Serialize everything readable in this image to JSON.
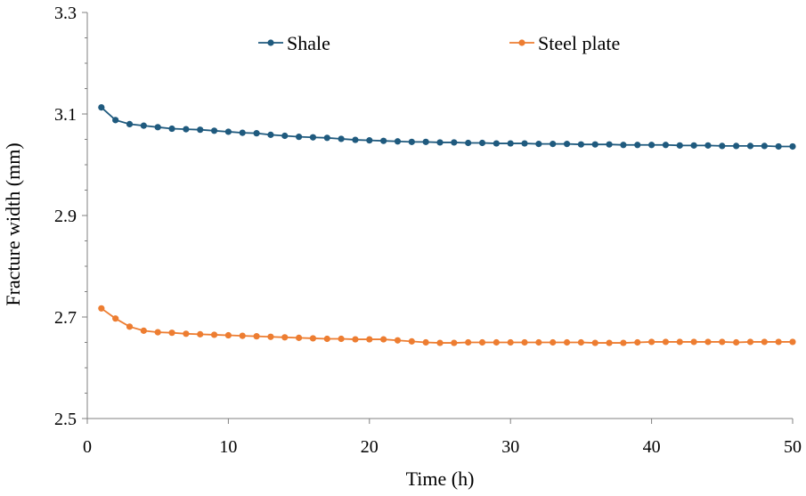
{
  "chart_data": {
    "type": "line",
    "title": "",
    "xlabel": "Time (h)",
    "ylabel": "Fracture width (mm)",
    "xlim": [
      0,
      50
    ],
    "ylim": [
      2.5,
      3.3
    ],
    "xticks": [
      0,
      10,
      20,
      30,
      40,
      50
    ],
    "yticks": [
      2.5,
      2.7,
      2.9,
      3.1,
      3.3
    ],
    "x_tick_labels": [
      "0",
      "10",
      "20",
      "30",
      "40",
      "50"
    ],
    "y_tick_labels": [
      "2.5",
      "2.7",
      "2.9",
      "3.1",
      "3.3"
    ],
    "grid": false,
    "legend_position": "top",
    "x": [
      1,
      2,
      3,
      4,
      5,
      6,
      7,
      8,
      9,
      10,
      11,
      12,
      13,
      14,
      15,
      16,
      17,
      18,
      19,
      20,
      21,
      22,
      23,
      24,
      25,
      26,
      27,
      28,
      29,
      30,
      31,
      32,
      33,
      34,
      35,
      36,
      37,
      38,
      39,
      40,
      41,
      42,
      43,
      44,
      45,
      46,
      47,
      48,
      49,
      50
    ],
    "series": [
      {
        "name": "Shale",
        "color": "#1f5a7e",
        "values": [
          3.113,
          3.088,
          3.08,
          3.077,
          3.074,
          3.071,
          3.07,
          3.069,
          3.067,
          3.065,
          3.063,
          3.062,
          3.059,
          3.057,
          3.055,
          3.054,
          3.053,
          3.051,
          3.049,
          3.048,
          3.047,
          3.046,
          3.045,
          3.045,
          3.044,
          3.044,
          3.043,
          3.043,
          3.042,
          3.042,
          3.042,
          3.041,
          3.041,
          3.041,
          3.04,
          3.04,
          3.04,
          3.039,
          3.039,
          3.039,
          3.039,
          3.038,
          3.038,
          3.038,
          3.037,
          3.037,
          3.037,
          3.037,
          3.036,
          3.036
        ]
      },
      {
        "name": "Steel plate",
        "color": "#ed7d31",
        "values": [
          2.717,
          2.697,
          2.681,
          2.673,
          2.67,
          2.669,
          2.667,
          2.666,
          2.665,
          2.664,
          2.663,
          2.662,
          2.661,
          2.66,
          2.659,
          2.658,
          2.657,
          2.657,
          2.656,
          2.656,
          2.656,
          2.654,
          2.652,
          2.65,
          2.649,
          2.649,
          2.65,
          2.65,
          2.65,
          2.65,
          2.65,
          2.65,
          2.65,
          2.65,
          2.65,
          2.649,
          2.649,
          2.649,
          2.65,
          2.651,
          2.651,
          2.651,
          2.651,
          2.651,
          2.651,
          2.65,
          2.651,
          2.651,
          2.651,
          2.651
        ]
      }
    ]
  }
}
